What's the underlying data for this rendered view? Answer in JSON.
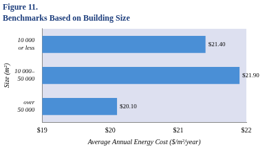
{
  "chart_data": {
    "type": "bar",
    "orientation": "horizontal",
    "title": "Figure 11.",
    "subtitle": "Benchmarks Based on Building Size",
    "categories": [
      "10 000\nor less",
      "10 000–\n50 000",
      "over\n50 000"
    ],
    "values": [
      21.4,
      21.9,
      20.1
    ],
    "value_labels": [
      "$21.40",
      "$21.90",
      "$20.10"
    ],
    "color": "#4a8fd6",
    "xlabel": "Average Annual Energy Cost ($/m²/year)",
    "ylabel": "Size (m²)",
    "xlim": [
      19,
      22
    ],
    "xticks": [
      {
        "value": 19,
        "label": "$19"
      },
      {
        "value": 20,
        "label": "$20"
      },
      {
        "value": 21,
        "label": "$21"
      },
      {
        "value": 22,
        "label": "$22"
      }
    ],
    "grid": false,
    "data_labels": true
  }
}
